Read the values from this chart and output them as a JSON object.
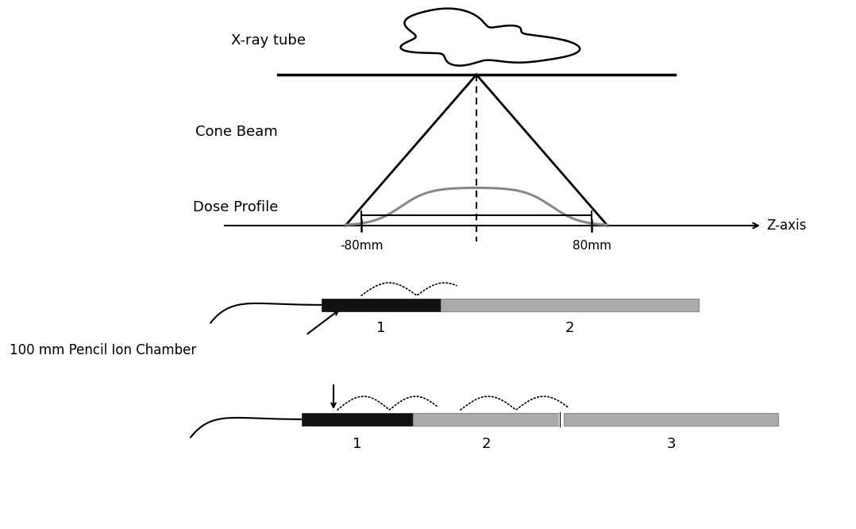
{
  "bg_color": "#ffffff",
  "xray_label": "X-ray tube",
  "cone_label": "Cone Beam",
  "dose_label": "Dose Profile",
  "zaxis_label": "Z-axis",
  "left_mm_label": "-80mm",
  "right_mm_label": "80mm",
  "pencil_label": "100 mm Pencil Ion Chamber",
  "step1_label1": "1",
  "step1_label2": "2",
  "step2_label1": "1",
  "step2_label2": "2",
  "step2_label3": "3",
  "cloud_color": "white",
  "cloud_edge": "black",
  "dark_seg_color": "#111111",
  "gray_seg_color": "#aaaaaa",
  "gray_seg_edge": "#888888"
}
